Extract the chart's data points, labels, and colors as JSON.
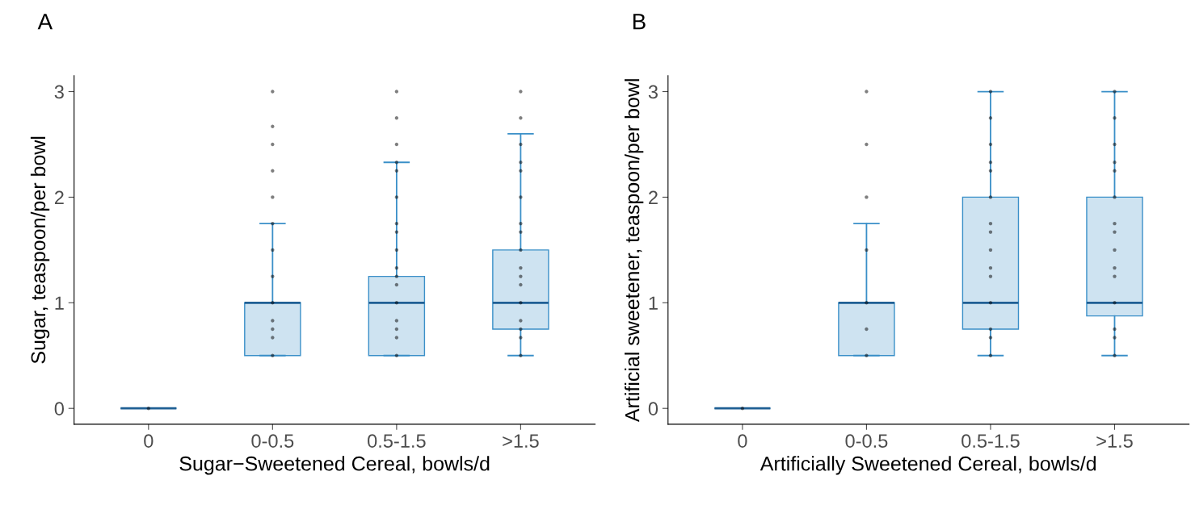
{
  "chart_data": [
    {
      "type": "box",
      "title": "A",
      "xlabel": "Sugar−Sweetened Cereal, bowls/d",
      "ylabel": "Sugar, teaspoon/per bowl",
      "categories": [
        "0",
        "0-0.5",
        "0.5-1.5",
        ">1.5"
      ],
      "boxes": [
        {
          "low": 0,
          "q1": 0,
          "median": 0,
          "q3": 0,
          "high": 0
        },
        {
          "low": 0.5,
          "q1": 0.5,
          "median": 1,
          "q3": 1,
          "high": 1.75
        },
        {
          "low": 0.5,
          "q1": 0.5,
          "median": 1,
          "q3": 1.25,
          "high": 2.33
        },
        {
          "low": 0.5,
          "q1": 0.75,
          "median": 1,
          "q3": 1.5,
          "high": 2.6
        }
      ],
      "color": "#3a8fc8",
      "series": [
        {
          "type": "scatter",
          "color": "#000000",
          "x": [
            "0",
            "0-0.5",
            "0-0.5",
            "0-0.5",
            "0-0.5",
            "0-0.5",
            "0-0.5",
            "0-0.5",
            "0-0.5",
            "0-0.5",
            "0-0.5",
            "0-0.5",
            "0-0.5",
            "0-0.5",
            "0.5-1.5",
            "0.5-1.5",
            "0.5-1.5",
            "0.5-1.5",
            "0.5-1.5",
            "0.5-1.5",
            "0.5-1.5",
            "0.5-1.5",
            "0.5-1.5",
            "0.5-1.5",
            "0.5-1.5",
            "0.5-1.5",
            "0.5-1.5",
            "0.5-1.5",
            "0.5-1.5",
            "0.5-1.5",
            "0.5-1.5",
            ">1.5",
            ">1.5",
            ">1.5",
            ">1.5",
            ">1.5",
            ">1.5",
            ">1.5",
            ">1.5",
            ">1.5",
            ">1.5",
            ">1.5",
            ">1.5",
            ">1.5",
            ">1.5",
            ">1.5",
            ">1.5",
            ">1.5"
          ],
          "values": [
            0,
            0.5,
            0.67,
            0.75,
            0.83,
            1,
            1.25,
            1.5,
            1.75,
            2,
            2.25,
            2.5,
            2.67,
            3,
            0.5,
            0.67,
            0.75,
            0.83,
            1,
            1.17,
            1.25,
            1.33,
            1.5,
            1.67,
            1.75,
            2,
            2.25,
            2.33,
            2.5,
            2.75,
            3,
            0.5,
            0.67,
            0.75,
            0.83,
            1,
            1.17,
            1.25,
            1.33,
            1.5,
            1.67,
            1.75,
            2,
            2.25,
            2.33,
            2.5,
            2.75,
            3
          ]
        }
      ],
      "ylim": [
        -0.15,
        3.15
      ],
      "yticks": [
        0,
        1,
        2,
        3
      ],
      "grid": false,
      "legend": false
    },
    {
      "type": "box",
      "title": "B",
      "xlabel": "Artificially Sweetened Cereal, bowls/d",
      "ylabel": "Artificial sweetener, teaspoon/per bowl",
      "categories": [
        "0",
        "0-0.5",
        "0.5-1.5",
        ">1.5"
      ],
      "boxes": [
        {
          "low": 0,
          "q1": 0,
          "median": 0,
          "q3": 0,
          "high": 0
        },
        {
          "low": 0.5,
          "q1": 0.5,
          "median": 1,
          "q3": 1,
          "high": 1.75
        },
        {
          "low": 0.5,
          "q1": 0.75,
          "median": 1,
          "q3": 2,
          "high": 3
        },
        {
          "low": 0.5,
          "q1": 0.875,
          "median": 1,
          "q3": 2,
          "high": 3
        }
      ],
      "color": "#3a8fc8",
      "series": [
        {
          "type": "scatter",
          "color": "#000000",
          "x": [
            "0",
            "0-0.5",
            "0-0.5",
            "0-0.5",
            "0-0.5",
            "0-0.5",
            "0-0.5",
            "0-0.5",
            "0.5-1.5",
            "0.5-1.5",
            "0.5-1.5",
            "0.5-1.5",
            "0.5-1.5",
            "0.5-1.5",
            "0.5-1.5",
            "0.5-1.5",
            "0.5-1.5",
            "0.5-1.5",
            "0.5-1.5",
            "0.5-1.5",
            "0.5-1.5",
            "0.5-1.5",
            "0.5-1.5",
            ">1.5",
            ">1.5",
            ">1.5",
            ">1.5",
            ">1.5",
            ">1.5",
            ">1.5",
            ">1.5",
            ">1.5",
            ">1.5",
            ">1.5",
            ">1.5",
            ">1.5",
            ">1.5",
            ">1.5"
          ],
          "values": [
            0,
            0.5,
            0.75,
            1,
            1.5,
            2,
            2.5,
            3,
            0.5,
            0.67,
            0.75,
            1,
            1.25,
            1.33,
            1.5,
            1.67,
            1.75,
            2,
            2.25,
            2.33,
            2.5,
            2.75,
            3,
            0.5,
            0.67,
            0.75,
            1,
            1.25,
            1.33,
            1.5,
            1.67,
            1.75,
            2,
            2.25,
            2.33,
            2.5,
            2.75,
            3
          ]
        }
      ],
      "ylim": [
        -0.15,
        3.15
      ],
      "yticks": [
        0,
        1,
        2,
        3
      ],
      "grid": false,
      "legend": false
    }
  ]
}
